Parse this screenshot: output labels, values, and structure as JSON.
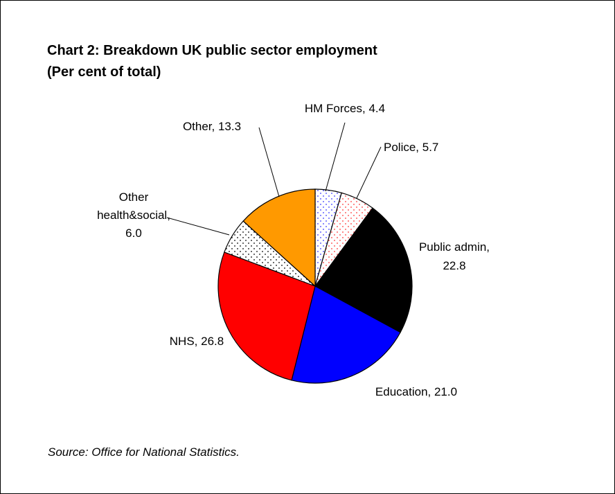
{
  "chart_data": {
    "type": "pie",
    "title": "Chart 2: Breakdown UK public sector employment",
    "subtitle": "(Per cent of total)",
    "source": "Source: Office for National Statistics.",
    "slices": [
      {
        "label": "HM Forces, 4.4",
        "value": 4.4,
        "color": "#ffffff",
        "dots": "#3333ff"
      },
      {
        "label": "Police, 5.7",
        "value": 5.7,
        "color": "#ffffff",
        "dots": "#ff3333"
      },
      {
        "label": "Public admin, 22.8",
        "label_lines": [
          "Public admin,",
          "22.8"
        ],
        "value": 22.8,
        "color": "#000000"
      },
      {
        "label": "Education, 21.0",
        "value": 21.0,
        "color": "#0000ff"
      },
      {
        "label": "NHS, 26.8",
        "value": 26.8,
        "color": "#ff0000"
      },
      {
        "label": "Other health&social, 6.0",
        "label_lines": [
          "Other",
          "health&social,",
          "6.0"
        ],
        "value": 6.0,
        "color": "#ffffff",
        "dots": "#000000"
      },
      {
        "label": "Other, 13.3",
        "value": 13.3,
        "color": "#ff9900"
      }
    ]
  }
}
